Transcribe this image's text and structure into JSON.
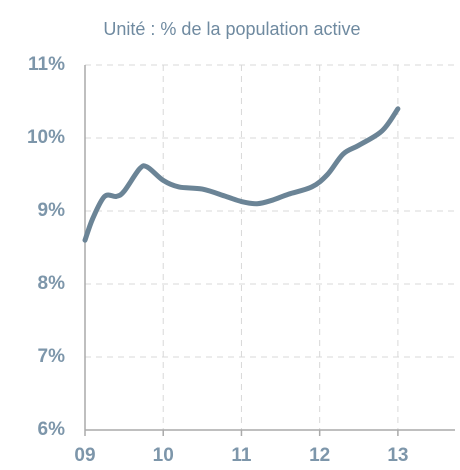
{
  "chart_data": {
    "type": "line",
    "subtitle": "Unité : % de la population active",
    "x": [
      9.0,
      9.1,
      9.25,
      9.4,
      9.5,
      9.7,
      9.8,
      10.0,
      10.2,
      10.5,
      10.8,
      11.0,
      11.2,
      11.4,
      11.6,
      11.9,
      12.1,
      12.3,
      12.5,
      12.8,
      13.0
    ],
    "series": [
      {
        "color": "#6b8496",
        "values": [
          8.6,
          8.9,
          9.2,
          9.2,
          9.27,
          9.58,
          9.6,
          9.42,
          9.33,
          9.3,
          9.2,
          9.13,
          9.1,
          9.15,
          9.23,
          9.33,
          9.5,
          9.78,
          9.9,
          10.1,
          10.4
        ]
      }
    ],
    "xlim": [
      9,
      13.73
    ],
    "xticks": [
      {
        "value": 9,
        "label": "09"
      },
      10,
      11,
      12,
      13
    ],
    "ylim": [
      6,
      11
    ],
    "yticks": [
      {
        "value": 6,
        "label": "6%"
      },
      {
        "value": 7,
        "label": "7%"
      },
      {
        "value": 8,
        "label": "8%"
      },
      {
        "value": 9,
        "label": "9%"
      },
      {
        "value": 10,
        "label": "10%"
      },
      {
        "value": 11,
        "label": "11%"
      }
    ],
    "grid": true
  }
}
